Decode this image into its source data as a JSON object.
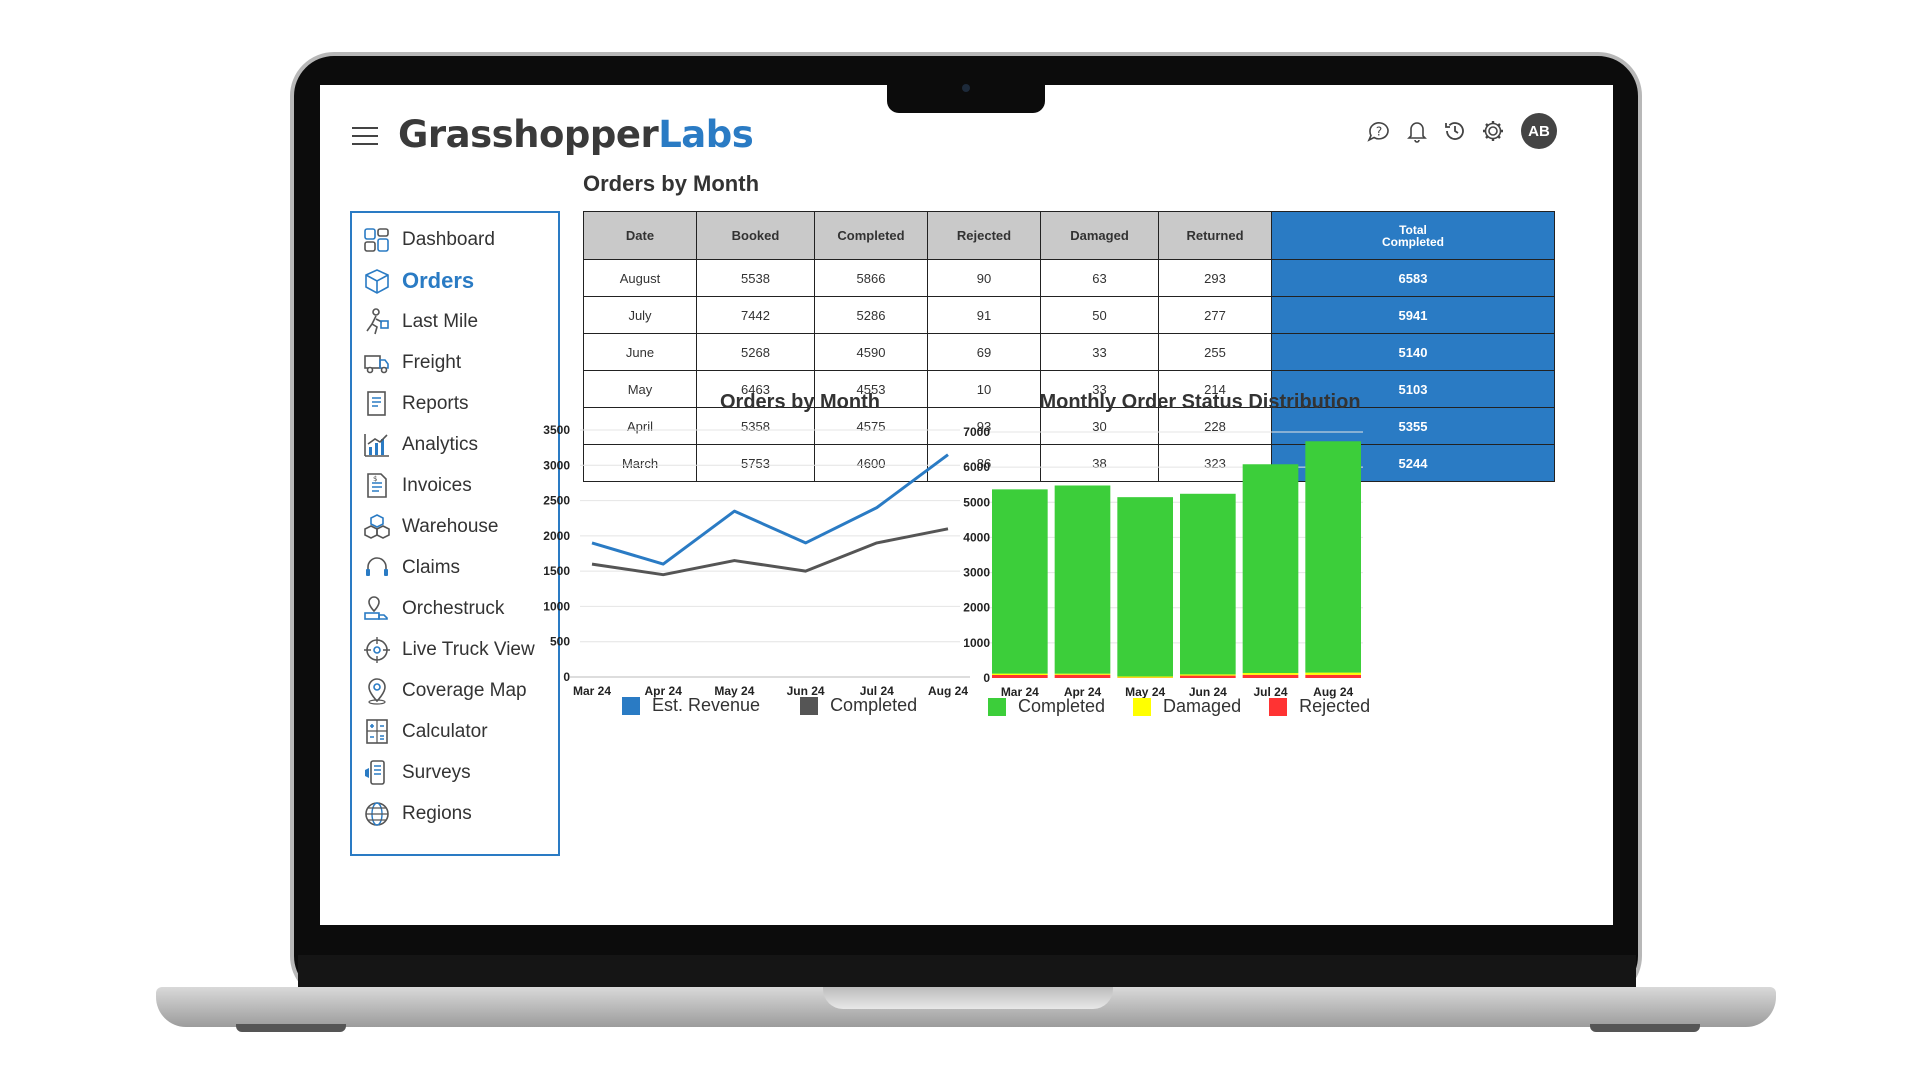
{
  "brand": {
    "part1": "Grasshopper",
    "part2": "Labs"
  },
  "header": {
    "avatar_initials": "AB",
    "icons": [
      "help-icon",
      "bell-icon",
      "history-icon",
      "gear-icon"
    ]
  },
  "sidebar": {
    "items": [
      {
        "label": "Dashboard",
        "icon": "dashboard-icon",
        "active": false
      },
      {
        "label": "Orders",
        "icon": "orders-box-icon",
        "active": true
      },
      {
        "label": "Last Mile",
        "icon": "delivery-person-icon",
        "active": false
      },
      {
        "label": "Freight",
        "icon": "truck-icon",
        "active": false
      },
      {
        "label": "Reports",
        "icon": "report-icon",
        "active": false
      },
      {
        "label": "Analytics",
        "icon": "analytics-icon",
        "active": false
      },
      {
        "label": "Invoices",
        "icon": "invoice-icon",
        "active": false
      },
      {
        "label": "Warehouse",
        "icon": "warehouse-boxes-icon",
        "active": false
      },
      {
        "label": "Claims",
        "icon": "headset-icon",
        "active": false
      },
      {
        "label": "Orchestruck",
        "icon": "route-truck-icon",
        "active": false
      },
      {
        "label": "Live Truck View",
        "icon": "crosshair-icon",
        "active": false
      },
      {
        "label": "Coverage Map",
        "icon": "map-pin-icon",
        "active": false
      },
      {
        "label": "Calculator",
        "icon": "calculator-icon",
        "active": false
      },
      {
        "label": "Surveys",
        "icon": "survey-icon",
        "active": false
      },
      {
        "label": "Regions",
        "icon": "globe-icon",
        "active": false
      }
    ]
  },
  "page_title": "Orders by Month",
  "table": {
    "headers": [
      "Date",
      "Booked",
      "Completed",
      "Rejected",
      "Damaged",
      "Returned"
    ],
    "total_header": [
      "Total",
      "Completed"
    ],
    "rows": [
      {
        "date": "August",
        "booked": "5538",
        "completed": "5866",
        "rejected": "90",
        "damaged": "63",
        "returned": "293",
        "total": "6583"
      },
      {
        "date": "July",
        "booked": "7442",
        "completed": "5286",
        "rejected": "91",
        "damaged": "50",
        "returned": "277",
        "total": "5941"
      },
      {
        "date": "June",
        "booked": "5268",
        "completed": "4590",
        "rejected": "69",
        "damaged": "33",
        "returned": "255",
        "total": "5140"
      },
      {
        "date": "May",
        "booked": "6463",
        "completed": "4553",
        "rejected": "10",
        "damaged": "33",
        "returned": "214",
        "total": "5103"
      },
      {
        "date": "April",
        "booked": "5358",
        "completed": "4575",
        "rejected": "93",
        "damaged": "30",
        "returned": "228",
        "total": "5355"
      },
      {
        "date": "March",
        "booked": "5753",
        "completed": "4600",
        "rejected": "86",
        "damaged": "38",
        "returned": "323",
        "total": "5244"
      }
    ]
  },
  "chart_data": [
    {
      "type": "line",
      "title": "Orders by Month",
      "categories": [
        "Mar 24",
        "Apr 24",
        "May 24",
        "Jun 24",
        "Jul 24",
        "Aug 24"
      ],
      "ylim": [
        0,
        3500
      ],
      "yticks": [
        0,
        500,
        1000,
        1500,
        2000,
        2500,
        3000,
        3500
      ],
      "grid": true,
      "legend_position": "bottom",
      "series": [
        {
          "name": "Est. Revenue",
          "color": "#2a7bc4",
          "values": [
            1900,
            1600,
            2350,
            1900,
            2400,
            3150
          ]
        },
        {
          "name": "Completed",
          "color": "#555555",
          "values": [
            1600,
            1450,
            1650,
            1500,
            1900,
            2100
          ]
        }
      ]
    },
    {
      "type": "bar",
      "stacked": true,
      "title": "Monthly Order Status Distribution",
      "categories": [
        "Mar 24",
        "Apr 24",
        "May 24",
        "Jun 24",
        "Jul 24",
        "Aug 24"
      ],
      "ylim": [
        0,
        7000
      ],
      "yticks": [
        0,
        1000,
        2000,
        3000,
        4000,
        5000,
        6000,
        7000
      ],
      "grid": true,
      "legend_position": "bottom",
      "series": [
        {
          "name": "Completed",
          "color": "#3cce3a",
          "values": [
            5244,
            5355,
            5103,
            5140,
            5941,
            6583
          ]
        },
        {
          "name": "Damaged",
          "color": "#ffff00",
          "values": [
            38,
            30,
            33,
            33,
            50,
            63
          ]
        },
        {
          "name": "Rejected",
          "color": "#ff3333",
          "values": [
            86,
            93,
            10,
            69,
            91,
            90
          ]
        }
      ]
    }
  ]
}
